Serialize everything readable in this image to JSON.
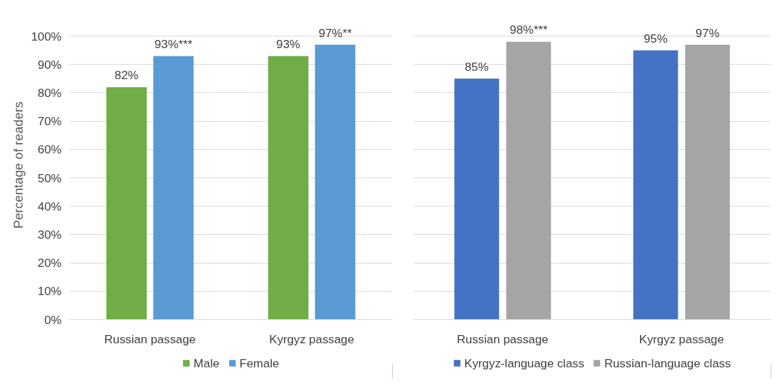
{
  "chart_data": [
    {
      "type": "bar",
      "ylabel": "Percentage of readers",
      "categories": [
        "Russian passage",
        "Kyrgyz passage"
      ],
      "series": [
        {
          "name": "Male",
          "color": "#70ad47",
          "values": [
            82,
            93
          ],
          "value_labels": [
            "82%",
            "93%"
          ]
        },
        {
          "name": "Female",
          "color": "#5b9bd5",
          "values": [
            93,
            97
          ],
          "value_labels": [
            "93%***",
            "97%**"
          ]
        }
      ],
      "ylim": [
        0,
        100
      ],
      "yticks": [
        {
          "value": 0,
          "label": "0%"
        },
        {
          "value": 10,
          "label": "10%"
        },
        {
          "value": 20,
          "label": "20%"
        },
        {
          "value": 30,
          "label": "30%"
        },
        {
          "value": 40,
          "label": "40%"
        },
        {
          "value": 50,
          "label": "50%"
        },
        {
          "value": 60,
          "label": "60%"
        },
        {
          "value": 70,
          "label": "70%"
        },
        {
          "value": 80,
          "label": "80%"
        },
        {
          "value": 90,
          "label": "90%"
        },
        {
          "value": 100,
          "label": "100%"
        }
      ],
      "grid": "y",
      "legend": "bottom"
    },
    {
      "type": "bar",
      "categories": [
        "Russian passage",
        "Kyrgyz passage"
      ],
      "series": [
        {
          "name": "Kyrgyz-language class",
          "color": "#4472c4",
          "values": [
            85,
            95
          ],
          "value_labels": [
            "85%",
            "95%"
          ]
        },
        {
          "name": "Russian-language class",
          "color": "#a5a5a5",
          "values": [
            98,
            97
          ],
          "value_labels": [
            "98%***",
            "97%"
          ]
        }
      ],
      "ylim": [
        0,
        100
      ],
      "yticks": [
        0,
        10,
        20,
        30,
        40,
        50,
        60,
        70,
        80,
        90,
        100
      ],
      "grid": "y",
      "legend": "bottom",
      "tick_labels": "x"
    }
  ]
}
